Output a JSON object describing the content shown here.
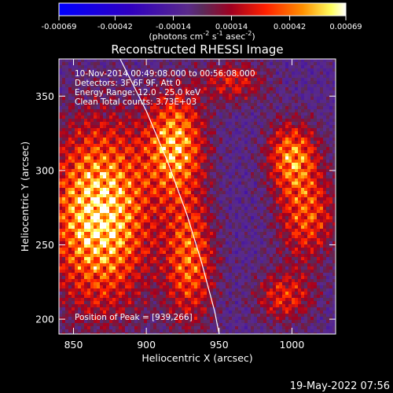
{
  "chart_data": {
    "type": "heatmap",
    "title": "Reconstructed RHESSI Image",
    "xlabel": "Heliocentric X (arcsec)",
    "ylabel": "Heliocentric Y (arcsec)",
    "xlim": [
      840,
      1030
    ],
    "ylim": [
      190,
      375
    ],
    "x_ticks": [
      850,
      900,
      950,
      1000
    ],
    "y_ticks": [
      200,
      250,
      300,
      350
    ],
    "x_tick_labels": [
      "850",
      "900",
      "950",
      "1000"
    ],
    "y_tick_labels": [
      "200",
      "250",
      "300",
      "350"
    ],
    "colorbar": {
      "range": [
        -0.00069,
        0.00069
      ],
      "ticks": [
        -0.00069,
        -0.00042,
        -0.00014,
        0.00014,
        0.00042,
        0.00069
      ],
      "tick_labels": [
        "-0.00069",
        "-0.00042",
        "-0.00014",
        "0.00014",
        "0.00042",
        "0.00069"
      ],
      "unit_label": "(photons cm",
      "unit_exp1": "-2",
      "unit_mid1": " s",
      "unit_exp2": "-1",
      "unit_mid2": " asec",
      "unit_exp3": "-2",
      "unit_end": ")"
    },
    "annotations": [
      "10-Nov-2014 00:49:08.000 to 00:56:08.000",
      "Detectors: 3F 6F 9F, Att 0",
      "Energy Range: 12.0 - 25.0 keV",
      "Clean     Total counts: 3.73E+03"
    ],
    "peak_label": "Position of Peak = [939,266]",
    "peak": [
      939,
      266
    ],
    "limb_points": [
      [
        882,
        375
      ],
      [
        900,
        340
      ],
      [
        915,
        305
      ],
      [
        928,
        270
      ],
      [
        938,
        238
      ],
      [
        947,
        205
      ],
      [
        950,
        190
      ]
    ],
    "hotspots": [
      {
        "x": 868,
        "y": 270,
        "sx": 24,
        "sy": 42,
        "amp": 0.95
      },
      {
        "x": 920,
        "y": 318,
        "sx": 14,
        "sy": 24,
        "amp": 0.75
      },
      {
        "x": 930,
        "y": 240,
        "sx": 12,
        "sy": 30,
        "amp": 0.6
      },
      {
        "x": 1000,
        "y": 310,
        "sx": 12,
        "sy": 16,
        "amp": 0.65
      },
      {
        "x": 1010,
        "y": 270,
        "sx": 14,
        "sy": 22,
        "amp": 0.55
      },
      {
        "x": 995,
        "y": 215,
        "sx": 14,
        "sy": 12,
        "amp": 0.45
      },
      {
        "x": 960,
        "y": 360,
        "sx": 16,
        "sy": 10,
        "amp": 0.4
      }
    ]
  },
  "footer": {
    "date": "19-May-2022 07:56"
  }
}
